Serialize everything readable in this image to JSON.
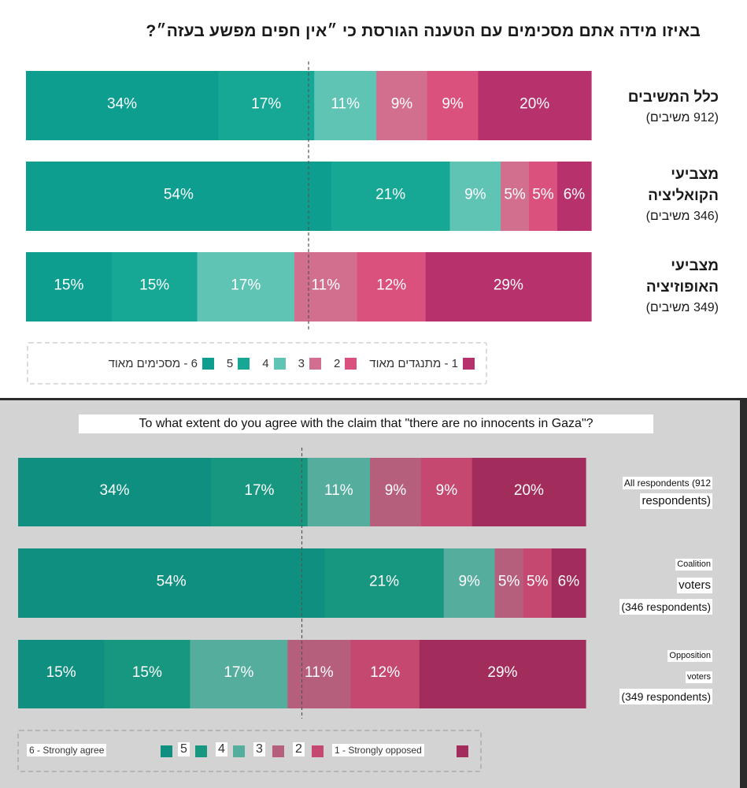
{
  "colors": {
    "6": "#0e9e90",
    "5": "#16a894",
    "4": "#5fc4b4",
    "3": "#d26f8f",
    "2": "#db517e",
    "1": "#b7316d"
  },
  "colors_en": {
    "6": "#0f8f7f",
    "5": "#17977f",
    "4": "#55ad9d",
    "3": "#b65f7d",
    "2": "#c4486f",
    "1": "#a22c5c"
  },
  "hebrew": {
    "title": "באיזו מידה אתם מסכימים עם הטענה הגורסת כי ״אין חפים מפשע בעזה״?",
    "groups": [
      {
        "name_lines": [
          "כלל המשיבים"
        ],
        "count": "(912 משיבים)"
      },
      {
        "name_lines": [
          "מצביעי",
          "הקואליציה"
        ],
        "count": "(346 משיבים)"
      },
      {
        "name_lines": [
          "מצביעי",
          "האופוזיציה"
        ],
        "count": "(349 משיבים)"
      }
    ],
    "legend": {
      "strong_agree": "6 - מסכימים מאוד",
      "n5": "5",
      "n4": "4",
      "n3": "3",
      "n2": "2",
      "strong_oppose": "1 - מתנגדים מאוד"
    }
  },
  "english": {
    "title": "To what extent do you agree with the claim that \"there are no innocents in Gaza\"?",
    "groups": [
      {
        "line1": "All respondents (912",
        "line2": "respondents)"
      },
      {
        "line1": "Coalition",
        "line2": "voters",
        "line3": "(346 respondents)"
      },
      {
        "line1": "Opposition",
        "line2": "voters",
        "line3": "(349 respondents)"
      }
    ],
    "legend": {
      "strong_agree": "6 - Strongly agree",
      "n5": "5",
      "n4": "4",
      "n3": "3",
      "n2": "2",
      "strong_oppose": "1 - Strongly opposed"
    }
  },
  "chart_data": {
    "type": "bar",
    "orientation": "horizontal-stacked",
    "title": "To what extent do you agree with the claim that \"there are no innocents in Gaza\"?",
    "title_he": "באיזו מידה אתם מסכימים עם הטענה הגורסת כי ״אין חפים מפשע בעזה״?",
    "categories": [
      "All respondents (912 respondents)",
      "Coalition voters (346 respondents)",
      "Opposition voters (349 respondents)"
    ],
    "series": [
      {
        "name": "6 - Strongly agree",
        "values": [
          34,
          54,
          15
        ]
      },
      {
        "name": "5",
        "values": [
          17,
          21,
          15
        ]
      },
      {
        "name": "4",
        "values": [
          11,
          9,
          17
        ]
      },
      {
        "name": "3",
        "values": [
          9,
          5,
          11
        ]
      },
      {
        "name": "2",
        "values": [
          9,
          5,
          12
        ]
      },
      {
        "name": "1 - Strongly opposed",
        "values": [
          20,
          6,
          29
        ]
      }
    ],
    "labels": [
      [
        "34%",
        "17%",
        "11%",
        "9%",
        "9%",
        "20%"
      ],
      [
        "54%",
        "21%",
        "9%",
        "5%",
        "5%",
        "6%"
      ],
      [
        "15%",
        "15%",
        "17%",
        "11%",
        "12%",
        "29%"
      ]
    ],
    "xlim": [
      0,
      100
    ],
    "midpoint_reference": 50
  }
}
